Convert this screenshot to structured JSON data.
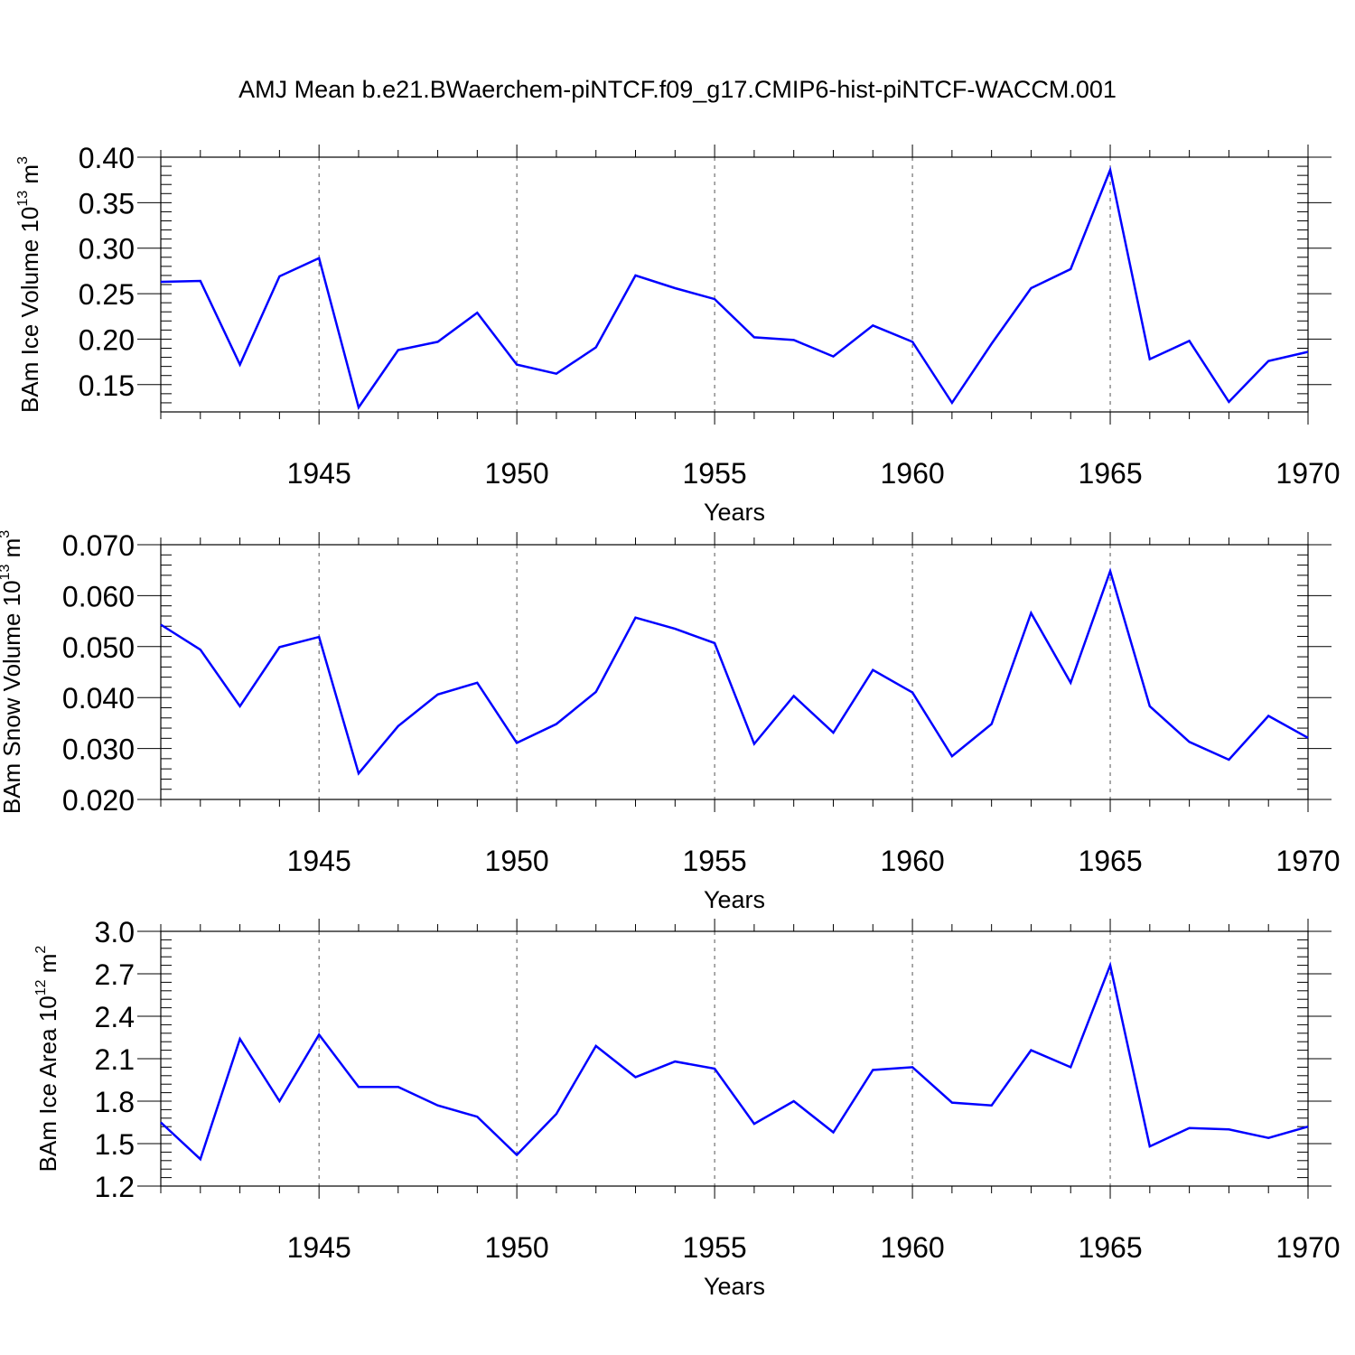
{
  "title": "AMJ Mean b.e21.BWaerchem-piNTCF.f09_g17.CMIP6-hist-piNTCF-WACCM.001",
  "colors": {
    "line": "#0000ff",
    "axis": "#000000",
    "grid": "#555555"
  },
  "chart_data": [
    {
      "type": "line",
      "title": "",
      "xlabel": "Years",
      "ylabel_prefix": "BAm Ice Volume 10",
      "ylabel_exp": "13",
      "ylabel_unit": " m",
      "ylabel_unit_exp": "3",
      "xlim": [
        1941,
        1970
      ],
      "ylim": [
        0.12,
        0.4
      ],
      "xticks": [
        1945,
        1950,
        1955,
        1960,
        1965,
        1970
      ],
      "xtick_labels": [
        "1945",
        "1950",
        "1955",
        "1960",
        "1965",
        "1970"
      ],
      "yticks": [
        0.15,
        0.2,
        0.25,
        0.3,
        0.35,
        0.4
      ],
      "ytick_labels": [
        "0.15",
        "0.20",
        "0.25",
        "0.30",
        "0.35",
        "0.40"
      ],
      "yminor": 0.01,
      "grid": "vertical dashed at major x ticks",
      "x": [
        1941,
        1942,
        1943,
        1944,
        1945,
        1946,
        1947,
        1948,
        1949,
        1950,
        1951,
        1952,
        1953,
        1954,
        1955,
        1956,
        1957,
        1958,
        1959,
        1960,
        1961,
        1962,
        1963,
        1964,
        1965,
        1966,
        1967,
        1968,
        1969,
        1970
      ],
      "series": [
        {
          "values": [
            0.263,
            0.264,
            0.172,
            0.269,
            0.289,
            0.125,
            0.188,
            0.197,
            0.229,
            0.172,
            0.162,
            0.191,
            0.27,
            0.256,
            0.244,
            0.202,
            0.199,
            0.181,
            0.215,
            0.197,
            0.13,
            0.195,
            0.256,
            0.277,
            0.386,
            0.178,
            0.198,
            0.131,
            0.176,
            0.186
          ]
        }
      ]
    },
    {
      "type": "line",
      "title": "",
      "xlabel": "Years",
      "ylabel_prefix": "BAm Snow Volume 10",
      "ylabel_exp": "13",
      "ylabel_unit": " m",
      "ylabel_unit_exp": "3",
      "xlim": [
        1941,
        1970
      ],
      "ylim": [
        0.02,
        0.07
      ],
      "xticks": [
        1945,
        1950,
        1955,
        1960,
        1965,
        1970
      ],
      "xtick_labels": [
        "1945",
        "1950",
        "1955",
        "1960",
        "1965",
        "1970"
      ],
      "yticks": [
        0.02,
        0.03,
        0.04,
        0.05,
        0.06,
        0.07
      ],
      "ytick_labels": [
        "0.020",
        "0.030",
        "0.040",
        "0.050",
        "0.060",
        "0.070"
      ],
      "yminor": 0.002,
      "grid": "vertical dashed at major x ticks",
      "x": [
        1941,
        1942,
        1943,
        1944,
        1945,
        1946,
        1947,
        1948,
        1949,
        1950,
        1951,
        1952,
        1953,
        1954,
        1955,
        1956,
        1957,
        1958,
        1959,
        1960,
        1961,
        1962,
        1963,
        1964,
        1965,
        1966,
        1967,
        1968,
        1969,
        1970
      ],
      "series": [
        {
          "values": [
            0.0543,
            0.0494,
            0.0383,
            0.0499,
            0.0519,
            0.0251,
            0.0344,
            0.0406,
            0.0429,
            0.0311,
            0.0348,
            0.0411,
            0.0557,
            0.0535,
            0.0507,
            0.0309,
            0.0403,
            0.0331,
            0.0454,
            0.041,
            0.0285,
            0.0348,
            0.0566,
            0.0429,
            0.0648,
            0.0383,
            0.0313,
            0.0278,
            0.0364,
            0.0321
          ]
        }
      ]
    },
    {
      "type": "line",
      "title": "",
      "xlabel": "Years",
      "ylabel_prefix": "BAm Ice Area 10",
      "ylabel_exp": "12",
      "ylabel_unit": " m",
      "ylabel_unit_exp": "2",
      "xlim": [
        1941,
        1970
      ],
      "ylim": [
        1.2,
        3.0
      ],
      "xticks": [
        1945,
        1950,
        1955,
        1960,
        1965,
        1970
      ],
      "xtick_labels": [
        "1945",
        "1950",
        "1955",
        "1960",
        "1965",
        "1970"
      ],
      "yticks": [
        1.2,
        1.5,
        1.8,
        2.1,
        2.4,
        2.7,
        3.0
      ],
      "ytick_labels": [
        "1.2",
        "1.5",
        "1.8",
        "2.1",
        "2.4",
        "2.7",
        "3.0"
      ],
      "yminor": 0.06,
      "grid": "vertical dashed at major x ticks",
      "x": [
        1941,
        1942,
        1943,
        1944,
        1945,
        1946,
        1947,
        1948,
        1949,
        1950,
        1951,
        1952,
        1953,
        1954,
        1955,
        1956,
        1957,
        1958,
        1959,
        1960,
        1961,
        1962,
        1963,
        1964,
        1965,
        1966,
        1967,
        1968,
        1969,
        1970
      ],
      "series": [
        {
          "values": [
            1.65,
            1.39,
            2.24,
            1.8,
            2.27,
            1.9,
            1.9,
            1.77,
            1.69,
            1.42,
            1.71,
            2.19,
            1.97,
            2.08,
            2.03,
            1.64,
            1.8,
            1.58,
            2.02,
            2.04,
            1.79,
            1.77,
            2.16,
            2.04,
            2.76,
            1.48,
            1.61,
            1.6,
            1.54,
            1.62
          ]
        }
      ]
    }
  ]
}
